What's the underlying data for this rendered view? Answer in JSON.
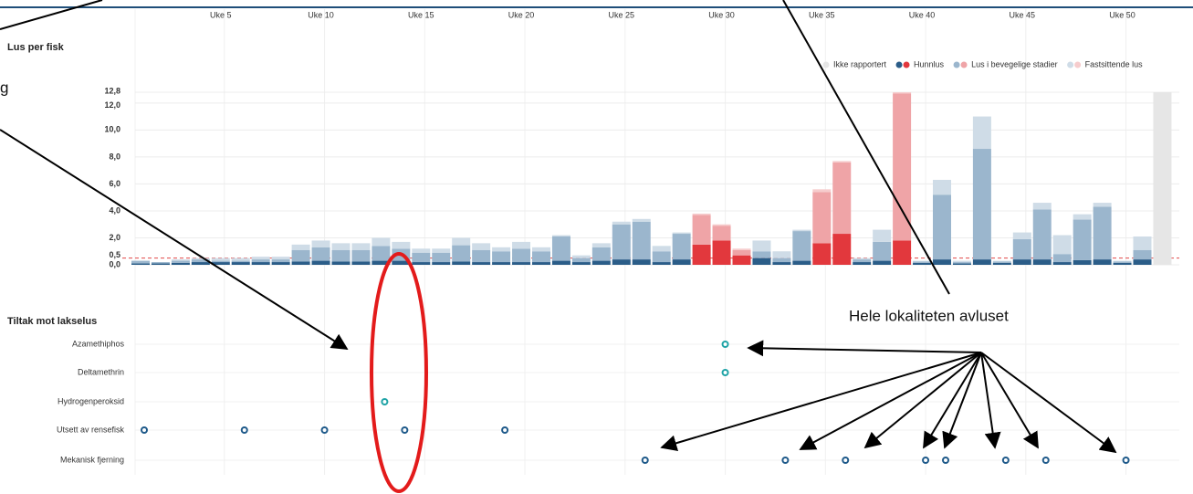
{
  "chart_data": [
    {
      "type": "stacked_bar",
      "title": "Lus per fisk",
      "categories": [
        null,
        null,
        null,
        null,
        "Uke 5",
        null,
        null,
        null,
        null,
        "Uke 10",
        null,
        null,
        null,
        null,
        "Uke 15",
        null,
        null,
        null,
        null,
        "Uke 20",
        null,
        null,
        null,
        null,
        "Uke 25",
        null,
        null,
        null,
        null,
        "Uke 30",
        null,
        null,
        null,
        null,
        "Uke 35",
        null,
        null,
        null,
        null,
        "Uke 40",
        null,
        null,
        null,
        null,
        "Uke 45",
        null,
        null,
        null,
        null,
        "Uke 50",
        null,
        null
      ],
      "ylim": [
        0,
        12.8
      ],
      "yticks": [
        {
          "value": 0,
          "label": "0,0"
        },
        {
          "value": 0.5,
          "label": "0,5"
        },
        {
          "value": 2,
          "label": "2,0"
        },
        {
          "value": 4,
          "label": "4,0"
        },
        {
          "value": 6,
          "label": "6,0"
        },
        {
          "value": 8,
          "label": "8,0"
        },
        {
          "value": 10,
          "label": "10,0"
        },
        {
          "value": 12,
          "label": "12,0"
        },
        {
          "value": 12.8,
          "label": "12,8"
        }
      ],
      "threshold": 0.5,
      "threshold_color": "#e04848",
      "grid": true,
      "alert_indices": [
        28,
        29,
        30,
        34,
        35,
        38
      ],
      "series": [
        {
          "name": "Ikke rapportert",
          "color": "#e6e6e6",
          "values": [
            null,
            null,
            null,
            null,
            null,
            null,
            null,
            null,
            null,
            null,
            null,
            null,
            null,
            null,
            null,
            null,
            null,
            null,
            null,
            null,
            null,
            null,
            null,
            null,
            null,
            null,
            null,
            null,
            null,
            null,
            null,
            null,
            null,
            null,
            null,
            null,
            null,
            null,
            null,
            null,
            null,
            null,
            null,
            null,
            null,
            null,
            null,
            null,
            null,
            null,
            null,
            12.8
          ]
        },
        {
          "name": "Hunnlus",
          "color": "#2b5d88",
          "alert_color": "#e2383d",
          "values": [
            0.1,
            0.1,
            0.15,
            0.2,
            0.2,
            0.2,
            0.2,
            0.2,
            0.25,
            0.3,
            0.25,
            0.25,
            0.3,
            0.3,
            0.2,
            0.2,
            0.25,
            0.2,
            0.2,
            0.2,
            0.2,
            0.3,
            0.2,
            0.3,
            0.4,
            0.4,
            0.2,
            0.4,
            1.5,
            1.8,
            0.7,
            0.5,
            0.2,
            0.3,
            1.6,
            2.3,
            0.2,
            0.3,
            1.8,
            0.15,
            0.4,
            0.1,
            0.4,
            0.15,
            0.4,
            0.4,
            0.2,
            0.35,
            0.4,
            0.15,
            0.4,
            null
          ]
        },
        {
          "name": "Lus i bevegelige stadier",
          "color": "#9bb6cd",
          "alert_color": "#efa4a7",
          "values": [
            0.2,
            0.1,
            0.15,
            0.2,
            0.1,
            0.1,
            0.2,
            0.2,
            0.85,
            1.0,
            0.85,
            0.85,
            1.1,
            0.9,
            0.7,
            0.7,
            1.2,
            0.9,
            0.8,
            1.0,
            0.8,
            1.8,
            0.3,
            1.0,
            2.6,
            2.8,
            0.8,
            1.9,
            2.2,
            1.1,
            0.4,
            0.5,
            0.3,
            2.2,
            3.8,
            5.3,
            0.2,
            1.4,
            10.9,
            0.1,
            4.8,
            0.1,
            8.2,
            0.1,
            1.5,
            3.7,
            0.6,
            3.0,
            3.9,
            0.1,
            0.7,
            null
          ]
        },
        {
          "name": "Fastsittende lus",
          "color": "#cfdce7",
          "alert_color": "#f6cccd",
          "values": [
            0,
            0,
            0.1,
            0.1,
            0.2,
            0.2,
            0.2,
            0.2,
            0.4,
            0.5,
            0.5,
            0.5,
            0.6,
            0.5,
            0.3,
            0.3,
            0.55,
            0.5,
            0.3,
            0.5,
            0.3,
            0.1,
            0.2,
            0.3,
            0.2,
            0.2,
            0.4,
            0.1,
            0.1,
            0.1,
            0.1,
            0.8,
            0.5,
            0.1,
            0.2,
            0.1,
            0.1,
            0.9,
            0.1,
            0.05,
            1.1,
            0.1,
            2.4,
            0.05,
            0.5,
            0.5,
            1.4,
            0.4,
            0.3,
            0.05,
            1.0,
            null
          ]
        }
      ]
    },
    {
      "type": "dot",
      "title": "Tiltak mot lakselus",
      "rows": [
        {
          "name": "Azamethiphos",
          "color": "#1fa3a6",
          "weeks": [
            30
          ]
        },
        {
          "name": "Deltamethrin",
          "color": "#1fa3a6",
          "weeks": [
            30
          ]
        },
        {
          "name": "Hydrogenperoksid",
          "color": "#1fa3a6",
          "weeks": [
            13
          ]
        },
        {
          "name": "Utsett av rensefisk",
          "color": "#1f5a8a",
          "weeks": [
            1,
            6,
            10,
            14,
            19
          ]
        },
        {
          "name": "Mekanisk fjerning",
          "color": "#1f5a8a",
          "weeks": [
            26,
            33,
            36,
            40,
            41,
            44,
            46,
            50
          ]
        }
      ]
    }
  ],
  "annotations": [
    "g",
    "Hele lokaliteten avluset"
  ]
}
